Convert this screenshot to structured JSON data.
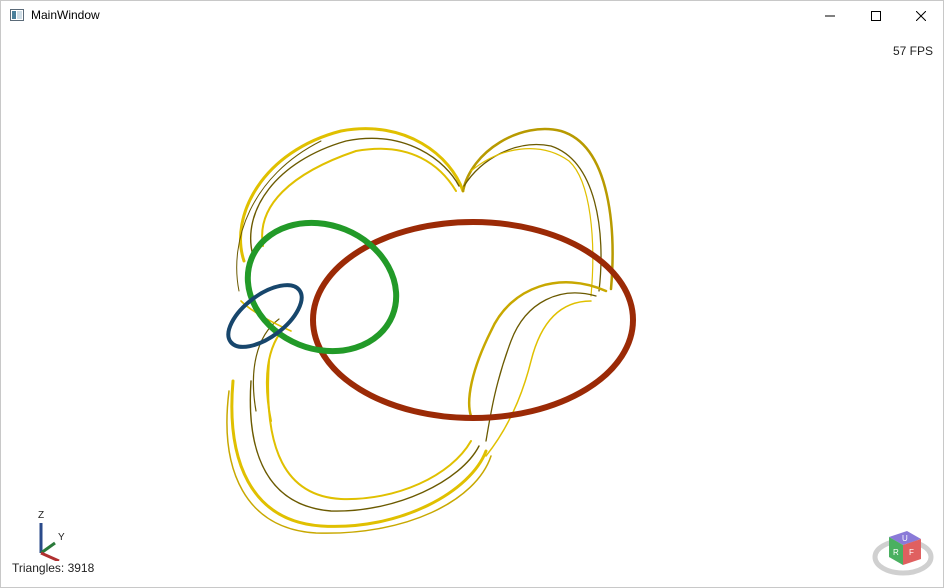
{
  "window": {
    "title": "MainWindow",
    "minimize_icon": "minimize-icon",
    "maximize_icon": "maximize-icon",
    "close_icon": "close-icon"
  },
  "viewport": {
    "fps": "57 FPS",
    "triangles": "Triangles: 3918",
    "axes": {
      "z_label": "Z",
      "y_label": "Y"
    },
    "view_cube": {
      "faces": [
        "U",
        "R",
        "F"
      ]
    }
  },
  "colors": {
    "ring_red": "#9b2a06",
    "ring_green": "#229a28",
    "ring_blue": "#17466c",
    "tube_gold": "#e0c000",
    "tube_dark": "#6b5a00"
  }
}
